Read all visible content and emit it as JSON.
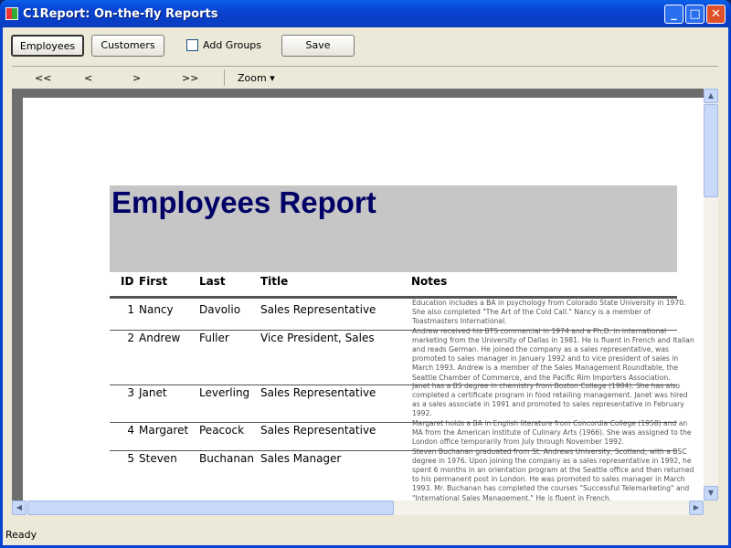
{
  "window": {
    "title": "C1Report: On-the-fly Reports",
    "minimize": "_",
    "maximize": "□",
    "close": "✕"
  },
  "toolbar": {
    "employees": "Employees",
    "customers": "Customers",
    "add_groups": "Add Groups",
    "add_groups_checked": false,
    "save": "Save"
  },
  "preview_toolbar": {
    "first": "<<",
    "prev": "<",
    "next": ">",
    "last": ">>",
    "zoom": "Zoom ▾"
  },
  "report": {
    "title": "Employees Report",
    "columns": [
      "ID",
      "First",
      "Last",
      "Title",
      "Notes"
    ],
    "rows": [
      {
        "id": "1",
        "first": "Nancy",
        "last": "Davolio",
        "title": "Sales Representative",
        "notes": [
          "Education includes a BA in psychology from Colorado State University in 1970.",
          "She also completed \"The Art of the Cold Call.\"  Nancy is a member of",
          "Toastmasters International."
        ]
      },
      {
        "id": "2",
        "first": "Andrew",
        "last": "Fuller",
        "title": "Vice President, Sales",
        "notes": [
          "Andrew received his BTS commercial in 1974 and a Ph.D. in international",
          "marketing from the University of Dallas in 1981.  He is fluent in French and Italian",
          "and reads German.  He joined the company as a sales representative, was",
          "promoted to sales manager in January 1992 and to vice president of sales in",
          "March 1993.  Andrew is a member of the Sales Management Roundtable, the",
          "Seattle Chamber of Commerce, and the Pacific Rim Importers Association."
        ]
      },
      {
        "id": "3",
        "first": "Janet",
        "last": "Leverling",
        "title": "Sales Representative",
        "notes": [
          "Janet has a BS degree in chemistry from Boston College (1984).  She has also",
          "completed a certificate program in food retailing management.  Janet was hired",
          "as a sales associate in 1991 and promoted to sales representative in February",
          "1992."
        ]
      },
      {
        "id": "4",
        "first": "Margaret",
        "last": "Peacock",
        "title": "Sales Representative",
        "notes": [
          "Margaret holds a BA in English literature from Concordia College (1958) and an",
          "MA from the American Institute of Culinary Arts (1966).  She was assigned to the",
          "London office temporarily from July through November 1992."
        ]
      },
      {
        "id": "5",
        "first": "Steven",
        "last": "Buchanan",
        "title": "Sales Manager",
        "notes": [
          "Steven Buchanan graduated from St. Andrews University, Scotland, with a BSC",
          "degree in 1976.  Upon joining the company as a sales representative in 1992, he",
          "spent 6 months in an orientation program at the Seattle office and then returned",
          "to his permanent post in London.  He was promoted to sales manager in March",
          "1993.  Mr. Buchanan has completed the courses \"Successful Telemarketing\" and",
          "\"International Sales Management.\"  He is fluent in French."
        ]
      }
    ]
  },
  "status": {
    "text": "Ready"
  }
}
